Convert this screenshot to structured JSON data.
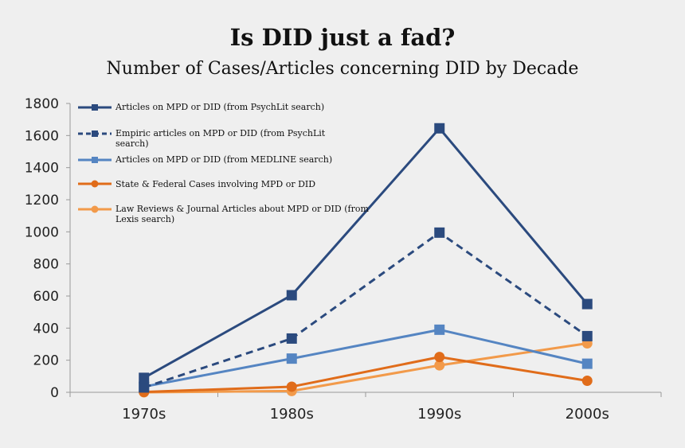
{
  "chart_data": {
    "type": "line",
    "title": "Is DID just a fad?",
    "subtitle": "Number of Cases/Articles concerning DID by Decade",
    "xlabel": "",
    "ylabel": "",
    "categories": [
      "1970s",
      "1980s",
      "1990s",
      "2000s"
    ],
    "ylim": [
      0,
      1800
    ],
    "yticks": [
      0,
      200,
      400,
      600,
      800,
      1000,
      1200,
      1400,
      1600,
      1800
    ],
    "grid": false,
    "legend_position": "top-left",
    "series": [
      {
        "name": "Articles on MPD or DID (from PsychLit search)",
        "values": [
          90,
          605,
          1645,
          550
        ],
        "color": "#2b4a7e",
        "dashed": false,
        "marker": "square"
      },
      {
        "name": "Empiric articles on MPD or DID (from PsychLit search)",
        "values": [
          30,
          335,
          995,
          350
        ],
        "color": "#2b4a7e",
        "dashed": true,
        "marker": "square"
      },
      {
        "name": "Articles on MPD or DID (from MEDLINE search)",
        "values": [
          35,
          210,
          390,
          178
        ],
        "color": "#5585c2",
        "dashed": false,
        "marker": "square"
      },
      {
        "name": "State & Federal Cases involving MPD or DID",
        "values": [
          2,
          35,
          220,
          72
        ],
        "color": "#e06c1a",
        "dashed": false,
        "marker": "circle"
      },
      {
        "name": "Law Reviews & Journal Articles about MPD or DID (from Lexis search)",
        "values": [
          0,
          8,
          168,
          305
        ],
        "color": "#f29a4a",
        "dashed": false,
        "marker": "circle"
      }
    ]
  }
}
